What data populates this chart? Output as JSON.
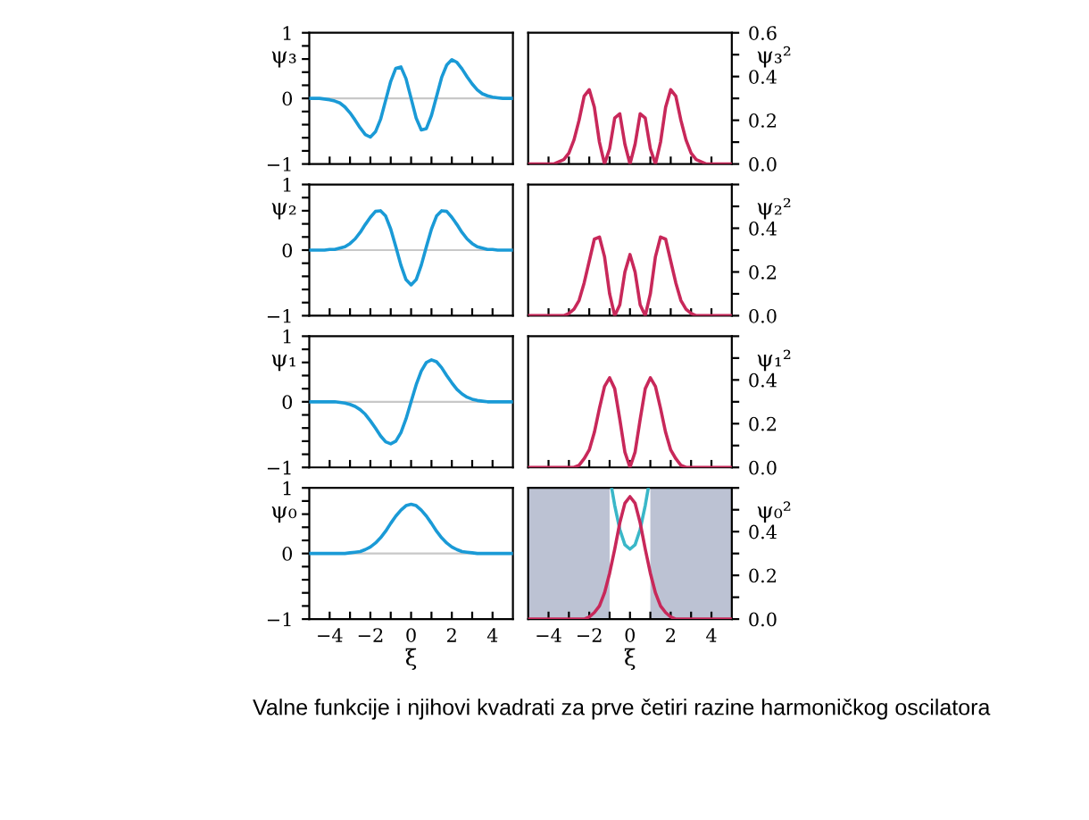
{
  "chart_data": [
    {
      "type": "line",
      "ylabel": "ψ₃",
      "x": [
        -5,
        -4.75,
        -4.5,
        -4.25,
        -4,
        -3.75,
        -3.5,
        -3.25,
        -3,
        -2.75,
        -2.5,
        -2.25,
        -2,
        -1.75,
        -1.5,
        -1.25,
        -1,
        -0.75,
        -0.5,
        -0.25,
        0,
        0.25,
        0.5,
        0.75,
        1,
        1.25,
        1.5,
        1.75,
        2,
        2.25,
        2.5,
        2.75,
        3,
        3.25,
        3.5,
        3.75,
        4,
        4.25,
        4.5,
        4.75,
        5
      ],
      "xlim": [
        -5,
        5
      ],
      "ylim": [
        -1,
        1
      ],
      "tick_labels": "y",
      "xticks": [
        {
          "value": -4,
          "label": null
        },
        {
          "value": -3,
          "label": null
        },
        {
          "value": -2,
          "label": null
        },
        {
          "value": -1,
          "label": null
        },
        {
          "value": 0,
          "label": null
        },
        {
          "value": 1,
          "label": null
        },
        {
          "value": 2,
          "label": null
        },
        {
          "value": 3,
          "label": null
        },
        {
          "value": 4,
          "label": null
        }
      ],
      "yticks": [
        {
          "value": -1,
          "label": "−1"
        },
        {
          "value": -0.8,
          "label": null
        },
        {
          "value": -0.6,
          "label": null
        },
        {
          "value": -0.4,
          "label": null
        },
        {
          "value": -0.2,
          "label": null
        },
        0,
        {
          "value": 0.2,
          "label": null
        },
        {
          "value": 0.4,
          "label": null
        },
        {
          "value": 0.6,
          "label": null
        },
        {
          "value": 0.8,
          "label": null
        },
        1
      ],
      "ref_lines": [
        {
          "axis": "y",
          "value": 0,
          "color": "#c8c8c8"
        }
      ],
      "series": [
        {
          "color": "#1a9ad6",
          "values": [
            0,
            0,
            0,
            -0.01,
            -0.02,
            -0.04,
            -0.07,
            -0.13,
            -0.22,
            -0.33,
            -0.45,
            -0.55,
            -0.59,
            -0.51,
            -0.32,
            -0.03,
            0.26,
            0.46,
            0.48,
            0.3,
            0,
            -0.3,
            -0.48,
            -0.46,
            -0.26,
            0.03,
            0.32,
            0.51,
            0.59,
            0.55,
            0.45,
            0.33,
            0.22,
            0.13,
            0.07,
            0.04,
            0.02,
            0.01,
            0,
            0,
            0
          ]
        }
      ]
    },
    {
      "type": "line",
      "ylabel": "ψ₃²",
      "x": [
        -5,
        -4.75,
        -4.5,
        -4.25,
        -4,
        -3.75,
        -3.5,
        -3.25,
        -3,
        -2.75,
        -2.5,
        -2.25,
        -2,
        -1.75,
        -1.5,
        -1.25,
        -1,
        -0.75,
        -0.5,
        -0.25,
        0,
        0.25,
        0.5,
        0.75,
        1,
        1.25,
        1.5,
        1.75,
        2,
        2.25,
        2.5,
        2.75,
        3,
        3.25,
        3.5,
        3.75,
        4,
        4.25,
        4.5,
        4.75,
        5
      ],
      "xlim": [
        -5,
        5
      ],
      "ylim": [
        0,
        0.6
      ],
      "tick_labels": "y",
      "xticks": [
        {
          "value": -4,
          "label": null
        },
        {
          "value": -3,
          "label": null
        },
        {
          "value": -2,
          "label": null
        },
        {
          "value": -1,
          "label": null
        },
        {
          "value": 0,
          "label": null
        },
        {
          "value": 1,
          "label": null
        },
        {
          "value": 2,
          "label": null
        },
        {
          "value": 3,
          "label": null
        },
        {
          "value": 4,
          "label": null
        }
      ],
      "yticks": [
        {
          "value": 0,
          "label": "0.0"
        },
        {
          "value": 0.1,
          "label": null
        },
        {
          "value": 0.2,
          "label": "0.2"
        },
        {
          "value": 0.3,
          "label": null
        },
        {
          "value": 0.4,
          "label": "0.4"
        },
        {
          "value": 0.5,
          "label": null
        },
        {
          "value": 0.6,
          "label": "0.6"
        }
      ],
      "series": [
        {
          "color": "#c8285a",
          "values": [
            0,
            0,
            0,
            0,
            0,
            0,
            0.01,
            0.02,
            0.05,
            0.11,
            0.2,
            0.31,
            0.34,
            0.26,
            0.1,
            0,
            0.07,
            0.21,
            0.23,
            0.09,
            0,
            0.09,
            0.23,
            0.21,
            0.07,
            0,
            0.1,
            0.26,
            0.34,
            0.31,
            0.2,
            0.11,
            0.05,
            0.02,
            0.01,
            0,
            0,
            0,
            0,
            0,
            0
          ]
        }
      ]
    },
    {
      "type": "line",
      "ylabel": "ψ₂",
      "x": [
        -5,
        -4.75,
        -4.5,
        -4.25,
        -4,
        -3.75,
        -3.5,
        -3.25,
        -3,
        -2.75,
        -2.5,
        -2.25,
        -2,
        -1.75,
        -1.5,
        -1.25,
        -1,
        -0.75,
        -0.5,
        -0.25,
        0,
        0.25,
        0.5,
        0.75,
        1,
        1.25,
        1.5,
        1.75,
        2,
        2.25,
        2.5,
        2.75,
        3,
        3.25,
        3.5,
        3.75,
        4,
        4.25,
        4.5,
        4.75,
        5
      ],
      "xlim": [
        -5,
        5
      ],
      "ylim": [
        -1,
        1
      ],
      "tick_labels": "y",
      "xticks": [
        {
          "value": -4,
          "label": null
        },
        {
          "value": -3,
          "label": null
        },
        {
          "value": -2,
          "label": null
        },
        {
          "value": -1,
          "label": null
        },
        {
          "value": 0,
          "label": null
        },
        {
          "value": 1,
          "label": null
        },
        {
          "value": 2,
          "label": null
        },
        {
          "value": 3,
          "label": null
        },
        {
          "value": 4,
          "label": null
        }
      ],
      "yticks": [
        {
          "value": -1,
          "label": "−1"
        },
        {
          "value": -0.8,
          "label": null
        },
        {
          "value": -0.6,
          "label": null
        },
        {
          "value": -0.4,
          "label": null
        },
        {
          "value": -0.2,
          "label": null
        },
        0,
        {
          "value": 0.2,
          "label": null
        },
        {
          "value": 0.4,
          "label": null
        },
        {
          "value": 0.6,
          "label": null
        },
        {
          "value": 0.8,
          "label": null
        },
        1
      ],
      "ref_lines": [
        {
          "axis": "y",
          "value": 0,
          "color": "#c8c8c8"
        }
      ],
      "series": [
        {
          "color": "#1a9ad6",
          "values": [
            0,
            0,
            0,
            0,
            0.01,
            0.01,
            0.03,
            0.05,
            0.1,
            0.17,
            0.27,
            0.39,
            0.5,
            0.59,
            0.6,
            0.52,
            0.32,
            0.05,
            -0.23,
            -0.45,
            -0.53,
            -0.45,
            -0.23,
            0.05,
            0.32,
            0.52,
            0.6,
            0.59,
            0.5,
            0.39,
            0.27,
            0.17,
            0.1,
            0.05,
            0.03,
            0.01,
            0.01,
            0,
            0,
            0,
            0
          ]
        }
      ]
    },
    {
      "type": "line",
      "ylabel": "ψ₂²",
      "x": [
        -5,
        -4.75,
        -4.5,
        -4.25,
        -4,
        -3.75,
        -3.5,
        -3.25,
        -3,
        -2.75,
        -2.5,
        -2.25,
        -2,
        -1.75,
        -1.5,
        -1.25,
        -1,
        -0.75,
        -0.5,
        -0.25,
        0,
        0.25,
        0.5,
        0.75,
        1,
        1.25,
        1.5,
        1.75,
        2,
        2.25,
        2.5,
        2.75,
        3,
        3.25,
        3.5,
        3.75,
        4,
        4.25,
        4.5,
        4.75,
        5
      ],
      "xlim": [
        -5,
        5
      ],
      "ylim": [
        0,
        0.6
      ],
      "tick_labels": "y",
      "xticks": [
        {
          "value": -4,
          "label": null
        },
        {
          "value": -3,
          "label": null
        },
        {
          "value": -2,
          "label": null
        },
        {
          "value": -1,
          "label": null
        },
        {
          "value": 0,
          "label": null
        },
        {
          "value": 1,
          "label": null
        },
        {
          "value": 2,
          "label": null
        },
        {
          "value": 3,
          "label": null
        },
        {
          "value": 4,
          "label": null
        }
      ],
      "yticks": [
        {
          "value": 0,
          "label": "0.0"
        },
        {
          "value": 0.1,
          "label": null
        },
        {
          "value": 0.2,
          "label": "0.2"
        },
        {
          "value": 0.3,
          "label": null
        },
        {
          "value": 0.4,
          "label": "0.4"
        },
        {
          "value": 0.5,
          "label": null
        },
        {
          "value": 0.6,
          "label": null
        }
      ],
      "series": [
        {
          "color": "#c8285a",
          "values": [
            0,
            0,
            0,
            0,
            0,
            0,
            0,
            0,
            0.01,
            0.03,
            0.07,
            0.15,
            0.25,
            0.35,
            0.36,
            0.27,
            0.1,
            0,
            0.05,
            0.2,
            0.28,
            0.2,
            0.05,
            0,
            0.1,
            0.27,
            0.36,
            0.35,
            0.25,
            0.15,
            0.07,
            0.03,
            0.01,
            0,
            0,
            0,
            0,
            0,
            0,
            0,
            0
          ]
        }
      ]
    },
    {
      "type": "line",
      "ylabel": "ψ₁",
      "x": [
        -5,
        -4.75,
        -4.5,
        -4.25,
        -4,
        -3.75,
        -3.5,
        -3.25,
        -3,
        -2.75,
        -2.5,
        -2.25,
        -2,
        -1.75,
        -1.5,
        -1.25,
        -1,
        -0.75,
        -0.5,
        -0.25,
        0,
        0.25,
        0.5,
        0.75,
        1,
        1.25,
        1.5,
        1.75,
        2,
        2.25,
        2.5,
        2.75,
        3,
        3.25,
        3.5,
        3.75,
        4,
        4.25,
        4.5,
        4.75,
        5
      ],
      "xlim": [
        -5,
        5
      ],
      "ylim": [
        -1,
        1
      ],
      "tick_labels": "y",
      "xticks": [
        {
          "value": -4,
          "label": null
        },
        {
          "value": -3,
          "label": null
        },
        {
          "value": -2,
          "label": null
        },
        {
          "value": -1,
          "label": null
        },
        {
          "value": 0,
          "label": null
        },
        {
          "value": 1,
          "label": null
        },
        {
          "value": 2,
          "label": null
        },
        {
          "value": 3,
          "label": null
        },
        {
          "value": 4,
          "label": null
        }
      ],
      "yticks": [
        {
          "value": -1,
          "label": "−1"
        },
        {
          "value": -0.8,
          "label": null
        },
        {
          "value": -0.6,
          "label": null
        },
        {
          "value": -0.4,
          "label": null
        },
        {
          "value": -0.2,
          "label": null
        },
        0,
        {
          "value": 0.2,
          "label": null
        },
        {
          "value": 0.4,
          "label": null
        },
        {
          "value": 0.6,
          "label": null
        },
        {
          "value": 0.8,
          "label": null
        },
        1
      ],
      "ref_lines": [
        {
          "axis": "y",
          "value": 0,
          "color": "#c8c8c8"
        }
      ],
      "series": [
        {
          "color": "#1a9ad6",
          "values": [
            0,
            0,
            0,
            0,
            0,
            0,
            -0.01,
            -0.02,
            -0.04,
            -0.07,
            -0.12,
            -0.19,
            -0.29,
            -0.4,
            -0.52,
            -0.61,
            -0.64,
            -0.6,
            -0.47,
            -0.26,
            0,
            0.26,
            0.47,
            0.6,
            0.64,
            0.61,
            0.52,
            0.4,
            0.29,
            0.19,
            0.12,
            0.07,
            0.04,
            0.02,
            0.01,
            0,
            0,
            0,
            0,
            0,
            0
          ]
        }
      ]
    },
    {
      "type": "line",
      "ylabel": "ψ₁²",
      "x": [
        -5,
        -4.75,
        -4.5,
        -4.25,
        -4,
        -3.75,
        -3.5,
        -3.25,
        -3,
        -2.75,
        -2.5,
        -2.25,
        -2,
        -1.75,
        -1.5,
        -1.25,
        -1,
        -0.75,
        -0.5,
        -0.25,
        0,
        0.25,
        0.5,
        0.75,
        1,
        1.25,
        1.5,
        1.75,
        2,
        2.25,
        2.5,
        2.75,
        3,
        3.25,
        3.5,
        3.75,
        4,
        4.25,
        4.5,
        4.75,
        5
      ],
      "xlim": [
        -5,
        5
      ],
      "ylim": [
        0,
        0.6
      ],
      "tick_labels": "y",
      "xticks": [
        {
          "value": -4,
          "label": null
        },
        {
          "value": -3,
          "label": null
        },
        {
          "value": -2,
          "label": null
        },
        {
          "value": -1,
          "label": null
        },
        {
          "value": 0,
          "label": null
        },
        {
          "value": 1,
          "label": null
        },
        {
          "value": 2,
          "label": null
        },
        {
          "value": 3,
          "label": null
        },
        {
          "value": 4,
          "label": null
        }
      ],
      "yticks": [
        {
          "value": 0,
          "label": "0.0"
        },
        {
          "value": 0.1,
          "label": null
        },
        {
          "value": 0.2,
          "label": "0.2"
        },
        {
          "value": 0.3,
          "label": null
        },
        {
          "value": 0.4,
          "label": "0.4"
        },
        {
          "value": 0.5,
          "label": null
        },
        {
          "value": 0.6,
          "label": null
        }
      ],
      "series": [
        {
          "color": "#c8285a",
          "values": [
            0,
            0,
            0,
            0,
            0,
            0,
            0,
            0,
            0,
            0,
            0.01,
            0.04,
            0.08,
            0.16,
            0.27,
            0.37,
            0.41,
            0.36,
            0.22,
            0.07,
            0,
            0.07,
            0.22,
            0.36,
            0.41,
            0.37,
            0.27,
            0.16,
            0.08,
            0.04,
            0.01,
            0,
            0,
            0,
            0,
            0,
            0,
            0,
            0,
            0,
            0
          ]
        }
      ]
    },
    {
      "type": "line",
      "ylabel": "ψ₀",
      "xlabel": "ξ",
      "x": [
        -5,
        -4.75,
        -4.5,
        -4.25,
        -4,
        -3.75,
        -3.5,
        -3.25,
        -3,
        -2.75,
        -2.5,
        -2.25,
        -2,
        -1.75,
        -1.5,
        -1.25,
        -1,
        -0.75,
        -0.5,
        -0.25,
        0,
        0.25,
        0.5,
        0.75,
        1,
        1.25,
        1.5,
        1.75,
        2,
        2.25,
        2.5,
        2.75,
        3,
        3.25,
        3.5,
        3.75,
        4,
        4.25,
        4.5,
        4.75,
        5
      ],
      "xlim": [
        -5,
        5
      ],
      "ylim": [
        -1,
        1
      ],
      "xticks": [
        {
          "value": -4,
          "label": "−4"
        },
        {
          "value": -3,
          "label": null
        },
        {
          "value": -2,
          "label": "−2"
        },
        {
          "value": -1,
          "label": null
        },
        0,
        {
          "value": 1,
          "label": null
        },
        2,
        {
          "value": 3,
          "label": null
        },
        4
      ],
      "yticks": [
        {
          "value": -1,
          "label": "−1"
        },
        {
          "value": -0.8,
          "label": null
        },
        {
          "value": -0.6,
          "label": null
        },
        {
          "value": -0.4,
          "label": null
        },
        {
          "value": -0.2,
          "label": null
        },
        0,
        {
          "value": 0.2,
          "label": null
        },
        {
          "value": 0.4,
          "label": null
        },
        {
          "value": 0.6,
          "label": null
        },
        {
          "value": 0.8,
          "label": null
        },
        1
      ],
      "ref_lines": [
        {
          "axis": "y",
          "value": 0,
          "color": "#c8c8c8"
        }
      ],
      "series": [
        {
          "color": "#1a9ad6",
          "values": [
            0,
            0,
            0,
            0,
            0,
            0,
            0,
            0,
            0.01,
            0.02,
            0.03,
            0.06,
            0.1,
            0.16,
            0.24,
            0.34,
            0.46,
            0.57,
            0.66,
            0.73,
            0.75,
            0.73,
            0.66,
            0.57,
            0.46,
            0.34,
            0.24,
            0.16,
            0.1,
            0.06,
            0.03,
            0.02,
            0.01,
            0,
            0,
            0,
            0,
            0,
            0,
            0,
            0
          ]
        }
      ]
    },
    {
      "type": "line",
      "ylabel": "ψ₀²",
      "xlabel": "ξ",
      "x": [
        -5,
        -4.75,
        -4.5,
        -4.25,
        -4,
        -3.75,
        -3.5,
        -3.25,
        -3,
        -2.75,
        -2.5,
        -2.25,
        -2,
        -1.75,
        -1.5,
        -1.25,
        -1,
        -0.75,
        -0.5,
        -0.25,
        0,
        0.25,
        0.5,
        0.75,
        1,
        1.25,
        1.5,
        1.75,
        2,
        2.25,
        2.5,
        2.75,
        3,
        3.25,
        3.5,
        3.75,
        4,
        4.25,
        4.5,
        4.75,
        5
      ],
      "xlim": [
        -5,
        5
      ],
      "ylim": [
        0,
        0.6
      ],
      "xticks": [
        {
          "value": -4,
          "label": "−4"
        },
        {
          "value": -3,
          "label": null
        },
        {
          "value": -2,
          "label": "−2"
        },
        {
          "value": -1,
          "label": null
        },
        0,
        {
          "value": 1,
          "label": null
        },
        2,
        {
          "value": 3,
          "label": null
        },
        4
      ],
      "yticks": [
        {
          "value": 0,
          "label": "0.0"
        },
        {
          "value": 0.1,
          "label": null
        },
        {
          "value": 0.2,
          "label": "0.2"
        },
        {
          "value": 0.3,
          "label": null
        },
        {
          "value": 0.4,
          "label": "0.4"
        },
        {
          "value": 0.5,
          "label": null
        },
        {
          "value": 0.6,
          "label": null
        }
      ],
      "bands": [
        {
          "axis": "x",
          "from": -5,
          "to": -1,
          "color": "#bcc2d3"
        },
        {
          "axis": "x",
          "from": 1,
          "to": 5,
          "color": "#bcc2d3"
        }
      ],
      "series": [
        {
          "color": "#3ab7c8",
          "x": [
            -0.9,
            -0.75,
            -0.5,
            -0.25,
            0,
            0.25,
            0.5,
            0.75,
            0.9
          ],
          "values": [
            0.6,
            0.52,
            0.41,
            0.34,
            0.32,
            0.34,
            0.41,
            0.52,
            0.6
          ]
        },
        {
          "color": "#c8285a",
          "values": [
            0,
            0,
            0,
            0,
            0,
            0,
            0,
            0,
            0,
            0,
            0,
            0,
            0.01,
            0.03,
            0.06,
            0.12,
            0.21,
            0.32,
            0.44,
            0.53,
            0.56,
            0.53,
            0.44,
            0.32,
            0.21,
            0.12,
            0.06,
            0.03,
            0.01,
            0,
            0,
            0,
            0,
            0,
            0,
            0,
            0,
            0,
            0,
            0,
            0
          ]
        }
      ],
      "annotations": [
        "Valne funkcije i njihovi kvadrati za prve četiri razine harmoničkog oscilatora"
      ]
    }
  ]
}
